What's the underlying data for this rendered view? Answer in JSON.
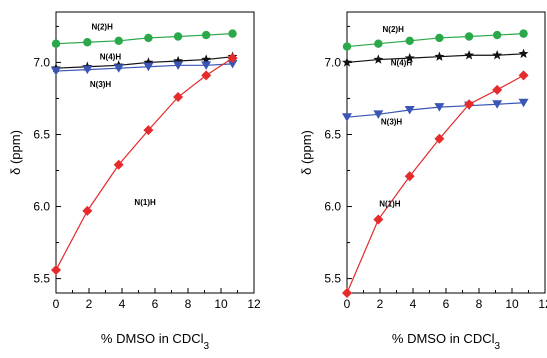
{
  "chart_data": [
    {
      "type": "line",
      "xlabel": "% DMSO in CDCl",
      "xlabel_sub": "3",
      "ylabel": "δ (ppm)",
      "xlim": [
        0,
        12
      ],
      "ylim": [
        5.4,
        7.35
      ],
      "xticks": [
        0,
        2,
        4,
        6,
        8,
        10,
        12
      ],
      "yticks": [
        5.5,
        6.0,
        6.5,
        7.0
      ],
      "ytick_labels": [
        "5.5",
        "6.0",
        "6.5",
        "7.0"
      ],
      "grid": false,
      "series": [
        {
          "name": "N(2)H",
          "marker": "circle",
          "color": "#2aa84a",
          "x": [
            0,
            1.9,
            3.8,
            5.6,
            7.4,
            9.1,
            10.7
          ],
          "y": [
            7.13,
            7.14,
            7.15,
            7.17,
            7.18,
            7.19,
            7.2
          ]
        },
        {
          "name": "N(4)H",
          "marker": "star",
          "color": "#111111",
          "x": [
            0,
            1.9,
            3.8,
            5.6,
            7.4,
            9.1,
            10.7
          ],
          "y": [
            6.96,
            6.97,
            6.98,
            7.0,
            7.01,
            7.02,
            7.04
          ]
        },
        {
          "name": "N(3)H",
          "marker": "triangle-down",
          "color": "#3a55b5",
          "x": [
            0,
            1.9,
            3.8,
            5.6,
            7.4,
            9.1,
            10.7
          ],
          "y": [
            6.94,
            6.95,
            6.96,
            6.97,
            6.98,
            6.98,
            6.99
          ]
        },
        {
          "name": "N(1)H",
          "marker": "diamond",
          "color": "#e52b2b",
          "x": [
            0,
            1.9,
            3.8,
            5.6,
            7.4,
            9.1,
            10.7
          ],
          "y": [
            5.56,
            5.97,
            6.29,
            6.53,
            6.76,
            6.91,
            7.03
          ]
        }
      ],
      "annotations": [
        {
          "text": "N(2)H",
          "x": 2.8,
          "y": 7.23
        },
        {
          "text": "N(4)H",
          "x": 3.3,
          "y": 7.02
        },
        {
          "text": "N(3)H",
          "x": 2.7,
          "y": 6.83
        },
        {
          "text": "N(1)H",
          "x": 5.4,
          "y": 6.01
        }
      ]
    },
    {
      "type": "line",
      "xlabel": "% DMSO in CDCl",
      "xlabel_sub": "3",
      "ylabel": "δ (ppm)",
      "xlim": [
        0,
        12
      ],
      "ylim": [
        5.4,
        7.35
      ],
      "xticks": [
        0,
        2,
        4,
        6,
        8,
        10,
        12
      ],
      "yticks": [
        5.5,
        6.0,
        6.5,
        7.0
      ],
      "ytick_labels": [
        "5.5",
        "6.0",
        "6.5",
        "7.0"
      ],
      "grid": false,
      "series": [
        {
          "name": "N(2)H",
          "marker": "circle",
          "color": "#2aa84a",
          "x": [
            0,
            1.9,
            3.8,
            5.6,
            7.4,
            9.1,
            10.7
          ],
          "y": [
            7.11,
            7.13,
            7.15,
            7.17,
            7.18,
            7.19,
            7.2
          ]
        },
        {
          "name": "N(4)H",
          "marker": "star",
          "color": "#111111",
          "x": [
            0,
            1.9,
            3.8,
            5.6,
            7.4,
            9.1,
            10.7
          ],
          "y": [
            7.0,
            7.02,
            7.03,
            7.04,
            7.05,
            7.05,
            7.06
          ]
        },
        {
          "name": "N(3)H",
          "marker": "triangle-down",
          "color": "#3a55b5",
          "x": [
            0,
            1.9,
            3.8,
            5.6,
            7.4,
            9.1,
            10.7
          ],
          "y": [
            6.62,
            6.64,
            6.67,
            6.69,
            6.7,
            6.71,
            6.72
          ]
        },
        {
          "name": "N(1)H",
          "marker": "diamond",
          "color": "#e52b2b",
          "x": [
            0,
            1.9,
            3.8,
            5.6,
            7.4,
            9.1,
            10.7
          ],
          "y": [
            5.4,
            5.91,
            6.21,
            6.47,
            6.71,
            6.81,
            6.91
          ]
        }
      ],
      "annotations": [
        {
          "text": "N(2)H",
          "x": 2.8,
          "y": 7.21
        },
        {
          "text": "N(4)H",
          "x": 3.3,
          "y": 6.98
        },
        {
          "text": "N(3)H",
          "x": 2.7,
          "y": 6.57
        },
        {
          "text": "N(1)H",
          "x": 2.6,
          "y": 6.0
        }
      ]
    }
  ]
}
